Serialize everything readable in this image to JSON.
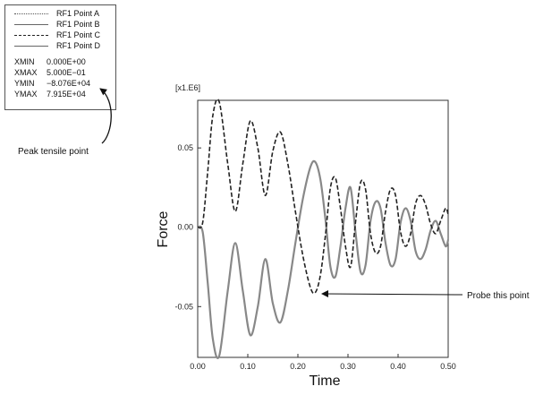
{
  "chart_data": {
    "type": "line",
    "xlabel": "Time",
    "ylabel": "Force",
    "y_scale_label": "[x1.E6]",
    "xlim": [
      0.0,
      0.5
    ],
    "ylim": [
      -0.082,
      0.08
    ],
    "x_ticks": [
      0.0,
      0.1,
      0.2,
      0.3,
      0.4,
      0.5
    ],
    "x_tick_labels": [
      "0.00",
      "0.10",
      "0.20",
      "0.30",
      "0.40",
      "0.50"
    ],
    "y_ticks": [
      -0.05,
      0.0,
      0.05
    ],
    "y_tick_labels": [
      "-0.05",
      "0.00",
      "0.05"
    ],
    "grid": false,
    "legend": {
      "placement": "top-left",
      "entries": [
        {
          "label": "RF1 Point A",
          "style": "dotted"
        },
        {
          "label": "RF1 Point B",
          "style": "solid"
        },
        {
          "label": "RF1 Point C",
          "style": "dashed"
        },
        {
          "label": "RF1 Point D",
          "style": "solid"
        }
      ],
      "stats": [
        {
          "label": "XMIN",
          "value": "0.000E+00"
        },
        {
          "label": "XMAX",
          "value": "5.000E−01"
        },
        {
          "label": "YMIN",
          "value": "−8.076E+04"
        },
        {
          "label": "YMAX",
          "value": "7.915E+04"
        }
      ]
    },
    "series": [
      {
        "line_style": "dashed",
        "color": "#222222",
        "x": [
          0.0,
          0.01,
          0.02,
          0.03,
          0.043,
          0.06,
          0.075,
          0.09,
          0.105,
          0.12,
          0.135,
          0.15,
          0.165,
          0.18,
          0.195,
          0.21,
          0.225,
          0.235,
          0.245,
          0.255,
          0.265,
          0.275,
          0.285,
          0.295,
          0.305,
          0.315,
          0.325,
          0.335,
          0.345,
          0.355,
          0.365,
          0.375,
          0.385,
          0.395,
          0.405,
          0.415,
          0.425,
          0.435,
          0.445,
          0.455,
          0.465,
          0.475,
          0.485,
          0.495,
          0.5
        ],
        "y": [
          0.0,
          0.003,
          0.035,
          0.07,
          0.079,
          0.04,
          0.01,
          0.04,
          0.067,
          0.05,
          0.02,
          0.048,
          0.06,
          0.04,
          0.01,
          -0.018,
          -0.038,
          -0.041,
          -0.03,
          -0.005,
          0.025,
          0.031,
          0.012,
          -0.012,
          -0.025,
          0.003,
          0.028,
          0.024,
          -0.004,
          -0.016,
          -0.012,
          0.01,
          0.024,
          0.02,
          -0.003,
          -0.012,
          -0.004,
          0.015,
          0.02,
          0.014,
          0.002,
          -0.004,
          0.004,
          0.012,
          0.008
        ]
      },
      {
        "line_style": "solid",
        "color": "#888888",
        "x": [
          0.0,
          0.01,
          0.02,
          0.03,
          0.043,
          0.06,
          0.075,
          0.09,
          0.105,
          0.12,
          0.135,
          0.15,
          0.165,
          0.18,
          0.195,
          0.21,
          0.225,
          0.235,
          0.245,
          0.255,
          0.265,
          0.275,
          0.285,
          0.295,
          0.305,
          0.315,
          0.325,
          0.335,
          0.345,
          0.355,
          0.365,
          0.375,
          0.385,
          0.395,
          0.405,
          0.415,
          0.425,
          0.435,
          0.445,
          0.455,
          0.465,
          0.475,
          0.485,
          0.495,
          0.5
        ],
        "y": [
          0.0,
          -0.003,
          -0.035,
          -0.07,
          -0.081,
          -0.04,
          -0.01,
          -0.04,
          -0.068,
          -0.05,
          -0.02,
          -0.048,
          -0.06,
          -0.04,
          -0.01,
          0.018,
          0.038,
          0.041,
          0.03,
          0.005,
          -0.025,
          -0.031,
          -0.012,
          0.012,
          0.025,
          -0.003,
          -0.028,
          -0.024,
          0.004,
          0.016,
          0.012,
          -0.01,
          -0.024,
          -0.02,
          0.003,
          0.012,
          0.004,
          -0.015,
          -0.02,
          -0.014,
          -0.002,
          0.004,
          -0.004,
          -0.012,
          -0.008
        ]
      }
    ],
    "annotations": [
      {
        "text": "Peak tensile point"
      },
      {
        "text": "Probe this point",
        "x": 0.235,
        "y": -0.041
      }
    ]
  }
}
